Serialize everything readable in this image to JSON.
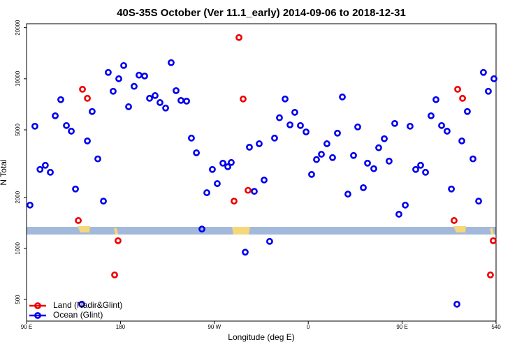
{
  "chart_data": {
    "type": "scatter",
    "title": "40S-35S October (Ver 11.1_early)   2014-09-06 to 2018-12-31",
    "x_label": "Longitude (deg E)",
    "y_label": "N Total",
    "log_y": true,
    "legend": "bottomleft",
    "xlim": [
      90,
      540
    ],
    "ylim": [
      373,
      21100
    ],
    "xticks": [
      {
        "value": 90,
        "label": "90 E"
      },
      180,
      {
        "value": 270,
        "label": "90 W"
      },
      {
        "value": 360,
        "label": "0"
      },
      {
        "value": 450,
        "label": "90 E"
      },
      540
    ],
    "yticks": [
      500,
      1000,
      2000,
      5000,
      10000,
      20000
    ],
    "series": [
      {
        "name": "Land (Nadir&Glint)",
        "color": "#ee0000",
        "x": [
          139.6,
          143.6,
          148.3,
          174.4,
          177.7,
          288.9,
          293.6,
          297.6,
          302.3,
          499.8,
          503.2,
          507.9,
          534.6,
          537.3
        ],
        "values": [
          1460,
          8670,
          7670,
          698,
          1110,
          1900,
          17500,
          7600,
          2200,
          1460,
          8670,
          7670,
          698,
          1110
        ]
      },
      {
        "name": "Ocean (Glint)",
        "color": "#0000ee",
        "x": [
          93.3,
          98,
          102.9,
          108,
          112.8,
          117.5,
          122.8,
          128.2,
          132.9,
          136.9,
          142.9,
          148.3,
          152.9,
          158.3,
          163.7,
          168.3,
          173,
          178.4,
          183.1,
          187.8,
          193.1,
          197.8,
          203.2,
          207.9,
          213.2,
          217.9,
          223.3,
          228.6,
          233.3,
          238,
          243.4,
          248,
          252.8,
          258.1,
          262.8,
          268.1,
          272.8,
          278.2,
          282.9,
          286.2,
          299.6,
          303.6,
          308.3,
          313,
          317.7,
          323,
          327.7,
          332.4,
          337.8,
          342.5,
          347.1,
          352.5,
          357.9,
          363.2,
          367.9,
          372.6,
          377.9,
          383.3,
          388,
          392.7,
          398,
          403.4,
          407.4,
          412.8,
          416.8,
          422.8,
          427.5,
          432.9,
          437.5,
          442.9,
          446.9,
          453,
          457.6,
          463,
          467.7,
          472.4,
          477.7,
          482.4,
          487.8,
          493.1,
          497.2,
          502.5,
          507.2,
          512.5,
          517.9,
          523.3,
          527.9,
          532.6,
          538
        ],
        "values": [
          1800,
          5250,
          2920,
          3090,
          2810,
          6050,
          7530,
          5300,
          4910,
          2240,
          469,
          4300,
          6410,
          3370,
          1900,
          10900,
          8440,
          10000,
          11970,
          6840,
          9020,
          10500,
          10380,
          7670,
          7960,
          7240,
          6720,
          12440,
          8510,
          7450,
          7380,
          4470,
          3660,
          1300,
          2130,
          2920,
          2410,
          3180,
          3030,
          3210,
          950,
          3950,
          2170,
          4140,
          2530,
          1100,
          4470,
          5890,
          7600,
          5350,
          6340,
          5300,
          4860,
          2730,
          3340,
          3590,
          4140,
          3430,
          4780,
          7810,
          2090,
          3530,
          5200,
          2280,
          3180,
          2950,
          3920,
          4430,
          3270,
          5450,
          1590,
          1800,
          5250,
          2920,
          3090,
          2810,
          6050,
          7530,
          5300,
          4910,
          2240,
          469,
          4300,
          6410,
          3370,
          1900,
          10900,
          8440,
          10000
        ]
      }
    ]
  }
}
